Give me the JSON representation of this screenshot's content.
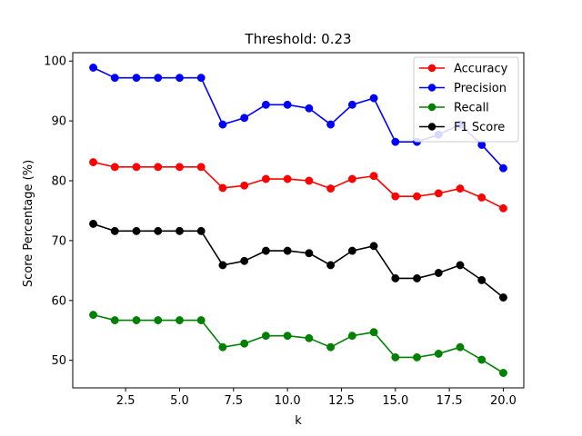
{
  "chart_data": {
    "type": "line",
    "title": "Threshold: 0.23",
    "xlabel": "k",
    "ylabel": "Score Percentage (%)",
    "xlim": [
      0.05,
      20.95
    ],
    "ylim": [
      45.4,
      101.4
    ],
    "xticks": [
      2.5,
      5.0,
      7.5,
      10.0,
      12.5,
      15.0,
      17.5,
      20.0
    ],
    "yticks": [
      50,
      60,
      70,
      80,
      90,
      100
    ],
    "grid": false,
    "legend_position": "top-right",
    "x": [
      1,
      2,
      3,
      4,
      5,
      6,
      7,
      8,
      9,
      10,
      11,
      12,
      13,
      14,
      15,
      16,
      17,
      18,
      19,
      20
    ],
    "series": [
      {
        "name": "Accuracy",
        "color": "#ff0000",
        "values": [
          83.1,
          82.3,
          82.3,
          82.3,
          82.3,
          82.3,
          78.8,
          79.2,
          80.3,
          80.3,
          80.0,
          78.7,
          80.3,
          80.8,
          77.4,
          77.4,
          77.9,
          78.7,
          77.2,
          75.4
        ]
      },
      {
        "name": "Precision",
        "color": "#0000ff",
        "values": [
          98.9,
          97.2,
          97.2,
          97.2,
          97.2,
          97.2,
          89.4,
          90.5,
          92.7,
          92.7,
          92.1,
          89.4,
          92.7,
          93.8,
          86.5,
          86.5,
          87.7,
          89.4,
          86.0,
          82.1
        ]
      },
      {
        "name": "Recall",
        "color": "#008000",
        "values": [
          57.6,
          56.7,
          56.7,
          56.7,
          56.7,
          56.7,
          52.2,
          52.8,
          54.1,
          54.1,
          53.7,
          52.2,
          54.1,
          54.7,
          50.5,
          50.5,
          51.1,
          52.2,
          50.1,
          47.9
        ]
      },
      {
        "name": "F1 Score",
        "color": "#000000",
        "values": [
          72.8,
          71.6,
          71.6,
          71.6,
          71.6,
          71.6,
          65.9,
          66.6,
          68.3,
          68.3,
          67.9,
          65.9,
          68.3,
          69.1,
          63.7,
          63.7,
          64.6,
          65.9,
          63.4,
          60.5
        ]
      }
    ]
  }
}
